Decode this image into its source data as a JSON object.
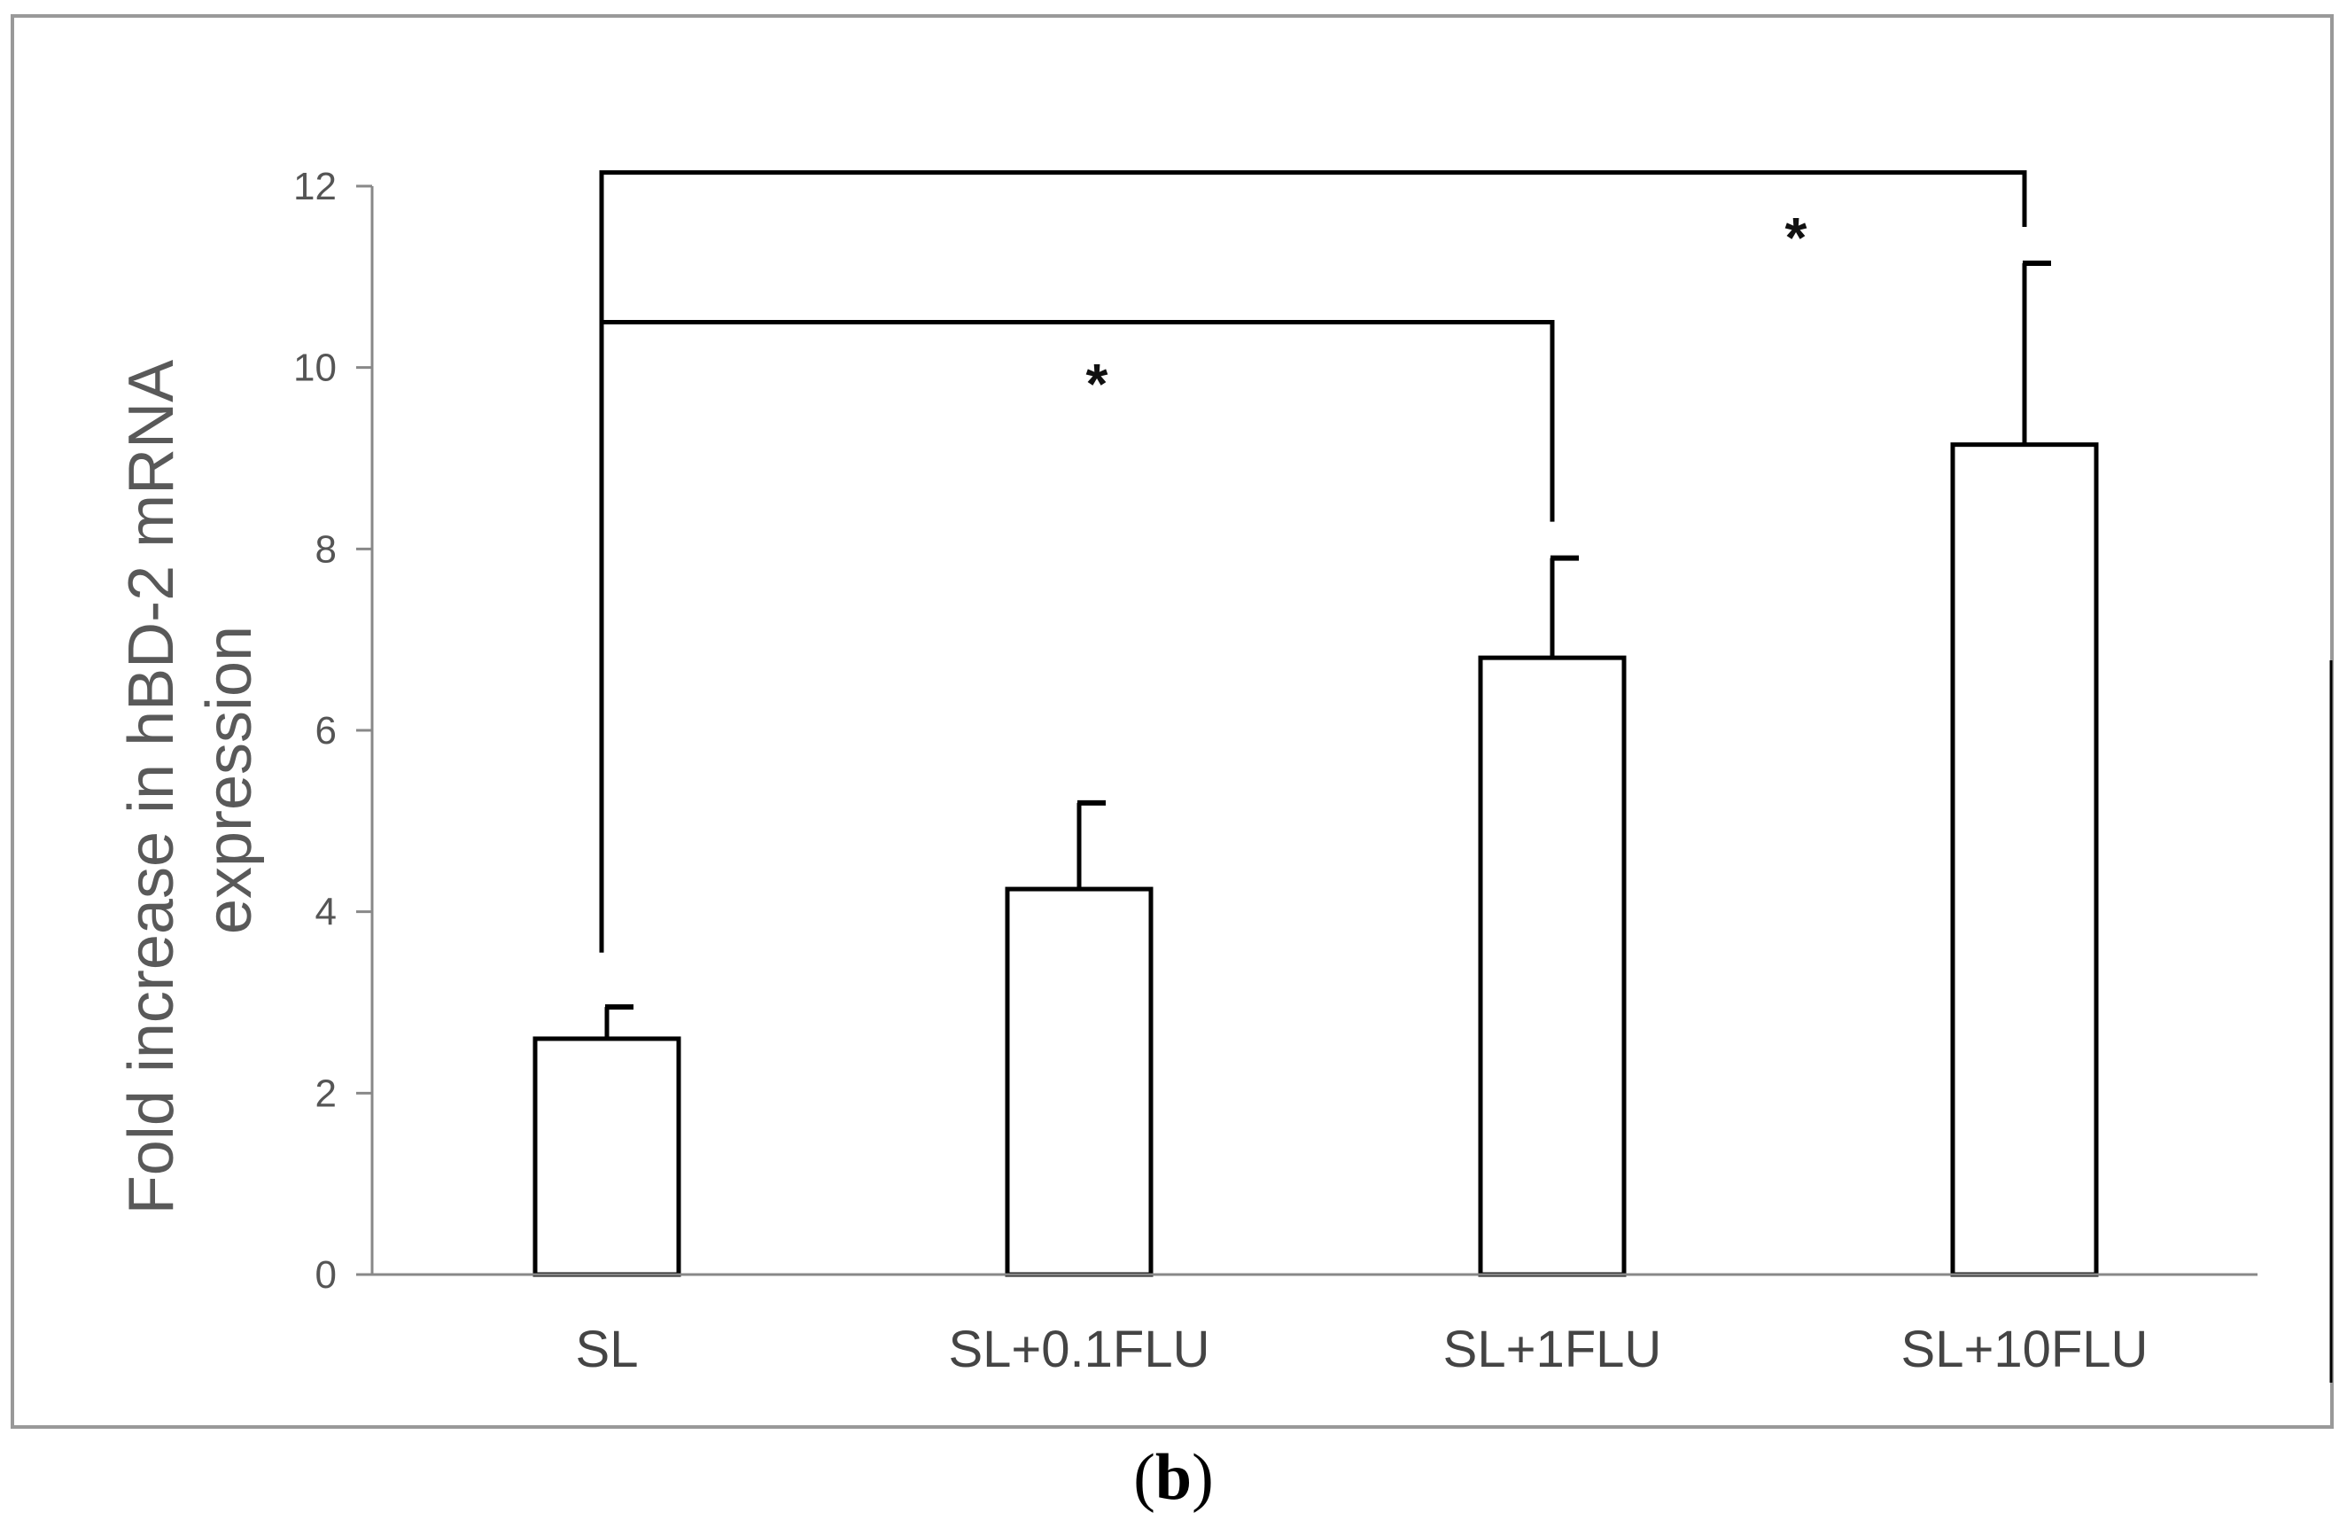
{
  "panel_label": {
    "open": "(",
    "letter": "b",
    "close": ")"
  },
  "colors": {
    "frame": "#999999",
    "axis": "#888888",
    "bar_edge": "#000000",
    "bar_fill": "#ffffff",
    "bracket": "#000000"
  },
  "chart_data": {
    "type": "bar",
    "title": "",
    "xlabel": "",
    "ylabel": "Fold increase in hBD-2 mRNA expression",
    "ylabel_lines": [
      "Fold increase in hBD-2 mRNA",
      "expression"
    ],
    "categories": [
      "SL",
      "SL+0.1FLU",
      "SL+1FLU",
      "SL+10FLU"
    ],
    "values": [
      2.6,
      4.25,
      6.8,
      9.15
    ],
    "error_upper": [
      0.35,
      0.95,
      1.1,
      2.0
    ],
    "ylim": [
      0,
      12
    ],
    "yticks": [
      0,
      2,
      4,
      6,
      8,
      10,
      12
    ],
    "grid": false,
    "legend": "none",
    "significance": [
      {
        "from": "SL",
        "to": "SL+1FLU",
        "level": 10.5,
        "label": "*"
      },
      {
        "from": "SL",
        "to": "SL+10FLU",
        "level": 12.15,
        "label": "*"
      }
    ]
  }
}
